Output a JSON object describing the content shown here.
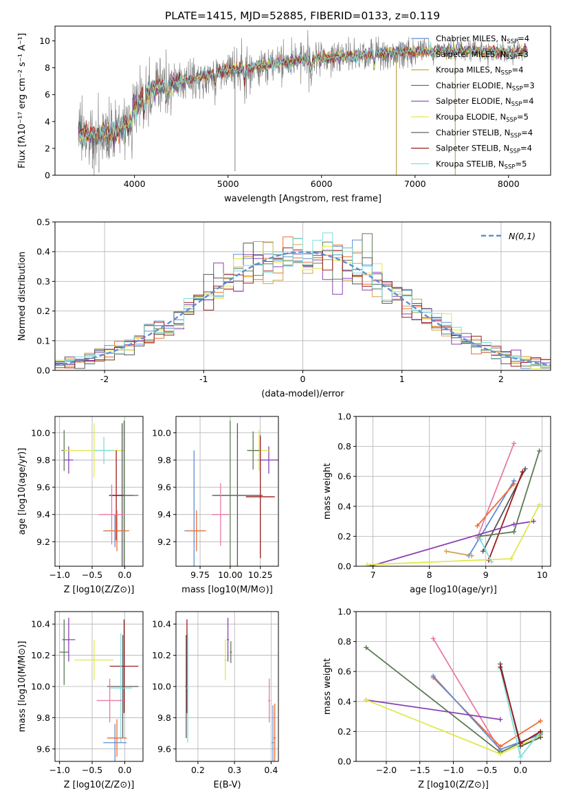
{
  "figure_title": "PLATE=1415, MJD=52885, FIBERID=0133, z=0.119",
  "colors": {
    "chabrier_miles": "#5e8bd4",
    "salpeter_miles": "#ef6b2e",
    "kroupa_miles": "#d4a14a",
    "chabrier_elodie": "#5a7a52",
    "salpeter_elodie": "#8a3fb0",
    "kroupa_elodie": "#e0e84a",
    "chabrier_stelib": "#555555",
    "salpeter_stelib": "#9b1a1a",
    "kroupa_stelib": "#7fdcdc",
    "pink": "#e87aa8",
    "normal": "#5b8ed6",
    "data": "#808080",
    "grid": "#b0b0b0"
  },
  "chart_data": [
    {
      "id": "spectrum",
      "type": "line",
      "title": "PLATE=1415, MJD=52885, FIBERID=0133, z=0.119",
      "xlabel": "wavelength [Angstrom, rest frame]",
      "ylabel": "Flux [fλ10⁻¹⁷ erg cm⁻² s⁻¹ A⁻¹]",
      "xlim": [
        3150,
        8450
      ],
      "ylim": [
        0,
        11.1
      ],
      "xticks": [
        4000,
        5000,
        6000,
        7000,
        8000
      ],
      "yticks": [
        0,
        2,
        4,
        6,
        8,
        10
      ],
      "grid": false,
      "legend_position": "top-right",
      "continuum_x": [
        3400,
        3600,
        3800,
        3950,
        4000,
        4200,
        4500,
        5000,
        5500,
        6000,
        6500,
        7000,
        7500,
        8000,
        8200
      ],
      "continuum_y": [
        3.1,
        3.0,
        3.2,
        4.2,
        5.2,
        6.4,
        7.0,
        7.8,
        8.3,
        8.7,
        9.0,
        9.2,
        9.3,
        9.2,
        9.2
      ],
      "series": [
        {
          "name": "Chabrier MILES, N_SSP=4",
          "label_main": "Chabrier MILES, N",
          "label_sub": "SSP",
          "label_tail": "=4",
          "color_key": "chabrier_miles"
        },
        {
          "name": "Salpeter MILES, N_SSP=3",
          "label_main": "Salpeter MILES, N",
          "label_sub": "SSP",
          "label_tail": "=3",
          "color_key": "salpeter_miles"
        },
        {
          "name": "Kroupa MILES, N_SSP=4",
          "label_main": "Kroupa MILES, N",
          "label_sub": "SSP",
          "label_tail": "=4",
          "color_key": "kroupa_miles"
        },
        {
          "name": "Chabrier ELODIE, N_SSP=3",
          "label_main": "Chabrier ELODIE, N",
          "label_sub": "SSP",
          "label_tail": "=3",
          "color_key": "chabrier_elodie"
        },
        {
          "name": "Salpeter ELODIE, N_SSP=4",
          "label_main": "Salpeter ELODIE, N",
          "label_sub": "SSP",
          "label_tail": "=4",
          "color_key": "salpeter_elodie"
        },
        {
          "name": "Kroupa ELODIE, N_SSP=5",
          "label_main": "Kroupa ELODIE, N",
          "label_sub": "SSP",
          "label_tail": "=5",
          "color_key": "kroupa_elodie"
        },
        {
          "name": "Chabrier STELIB, N_SSP=4",
          "label_main": "Chabrier STELIB, N",
          "label_sub": "SSP",
          "label_tail": "=4",
          "color_key": "chabrier_stelib"
        },
        {
          "name": "Salpeter STELIB, N_SSP=4",
          "label_main": "Salpeter STELIB, N",
          "label_sub": "SSP",
          "label_tail": "=4",
          "color_key": "salpeter_stelib"
        },
        {
          "name": "Kroupa STELIB, N_SSP=5",
          "label_main": "Kroupa STELIB, N",
          "label_sub": "SSP",
          "label_tail": "=5",
          "color_key": "kroupa_stelib"
        }
      ]
    },
    {
      "id": "residuals",
      "type": "histogram",
      "xlabel": "(data-model)/error",
      "ylabel": "Normed distribution",
      "xlim": [
        -2.5,
        2.5
      ],
      "ylim": [
        0,
        0.5
      ],
      "xticks": [
        -2,
        -1,
        0,
        1,
        2
      ],
      "yticks": [
        0.0,
        0.1,
        0.2,
        0.3,
        0.4,
        0.5
      ],
      "grid": true,
      "bin_width": 0.1,
      "reference_curve": {
        "name": "N(0,1)",
        "mu": 0,
        "sigma": 1
      },
      "legend_position": "top-right",
      "series_color_keys": [
        "chabrier_miles",
        "salpeter_miles",
        "kroupa_miles",
        "chabrier_elodie",
        "salpeter_elodie",
        "kroupa_elodie",
        "chabrier_stelib",
        "salpeter_stelib",
        "kroupa_stelib"
      ]
    },
    {
      "id": "age_vs_Z",
      "type": "errorbar",
      "xlabel": "Z [log10(Z/Z⊙)]",
      "ylabel": "age [log10(age/yr)]",
      "xlim": [
        -1.07,
        0.28
      ],
      "ylim": [
        9.02,
        10.12
      ],
      "xticks": [
        -1.0,
        -0.5,
        0.0
      ],
      "yticks": [
        9.2,
        9.4,
        9.6,
        9.8,
        10.0
      ],
      "grid": true,
      "points": [
        {
          "x": -0.93,
          "y": 9.87,
          "xerr": 0.04,
          "yerr": 0.15,
          "color_key": "chabrier_elodie"
        },
        {
          "x": -0.86,
          "y": 9.8,
          "xerr": 0.07,
          "yerr": 0.1,
          "color_key": "salpeter_elodie"
        },
        {
          "x": -0.47,
          "y": 9.87,
          "xerr": 0.47,
          "yerr": 0.2,
          "color_key": "kroupa_elodie"
        },
        {
          "x": -0.32,
          "y": 9.87,
          "xerr": 0.15,
          "yerr": 0.1,
          "color_key": "kroupa_stelib"
        },
        {
          "x": -0.04,
          "y": 9.54,
          "xerr": 0.17,
          "yerr": 0.53,
          "color_key": "chabrier_stelib"
        },
        {
          "x": -0.01,
          "y": 9.54,
          "xerr": 0.22,
          "yerr": 0.55,
          "color_key": "chabrier_elodie"
        },
        {
          "x": -0.13,
          "y": 9.54,
          "xerr": 0.11,
          "yerr": 0.33,
          "color_key": "salpeter_stelib"
        },
        {
          "x": -0.15,
          "y": 9.28,
          "xerr": 0.18,
          "yerr": 0.12,
          "color_key": "chabrier_miles"
        },
        {
          "x": -0.12,
          "y": 9.28,
          "xerr": 0.19,
          "yerr": 0.15,
          "color_key": "salpeter_miles"
        },
        {
          "x": -0.2,
          "y": 9.4,
          "xerr": 0.2,
          "yerr": 0.22,
          "color_key": "pink"
        }
      ]
    },
    {
      "id": "age_vs_mass",
      "type": "errorbar",
      "xlabel": "mass [log10(M/M⊙)]",
      "ylabel": "",
      "xlim": [
        9.55,
        10.4
      ],
      "ylim": [
        9.02,
        10.12
      ],
      "xticks": [
        9.75,
        10.0,
        10.25
      ],
      "xtick_labels": [
        "9.75",
        "10.00",
        "10.25"
      ],
      "yticks": [
        9.2,
        9.4,
        9.6,
        9.8,
        10.0
      ],
      "grid": true,
      "points": [
        {
          "x": 10.32,
          "y": 9.8,
          "xerr": 0.09,
          "yerr": 0.1,
          "color_key": "salpeter_elodie"
        },
        {
          "x": 10.24,
          "y": 9.87,
          "xerr": 0.09,
          "yerr": 0.15,
          "color_key": "kroupa_elodie"
        },
        {
          "x": 10.19,
          "y": 9.87,
          "xerr": 0.05,
          "yerr": 0.14,
          "color_key": "chabrier_elodie"
        },
        {
          "x": 10.25,
          "y": 9.53,
          "xerr": 0.12,
          "yerr": 0.45,
          "color_key": "salpeter_stelib"
        },
        {
          "x": 10.06,
          "y": 9.54,
          "xerr": 0.21,
          "yerr": 0.53,
          "color_key": "chabrier_stelib"
        },
        {
          "x": 10.0,
          "y": 9.54,
          "xerr": 0.11,
          "yerr": 0.55,
          "color_key": "chabrier_elodie"
        },
        {
          "x": 9.7,
          "y": 9.28,
          "xerr": 0.08,
          "yerr": 0.59,
          "color_key": "chabrier_miles"
        },
        {
          "x": 9.72,
          "y": 9.28,
          "xerr": 0.08,
          "yerr": 0.15,
          "color_key": "salpeter_miles"
        },
        {
          "x": 9.92,
          "y": 9.4,
          "xerr": 0.07,
          "yerr": 0.23,
          "color_key": "pink"
        }
      ]
    },
    {
      "id": "weight_vs_age",
      "type": "line",
      "xlabel": "age [log10(age/yr)]",
      "ylabel": "mass weight",
      "xlim": [
        6.7,
        10.15
      ],
      "ylim": [
        0,
        1.0
      ],
      "xticks": [
        7,
        8,
        9,
        10
      ],
      "yticks": [
        0.0,
        0.2,
        0.4,
        0.6,
        0.8,
        1.0
      ],
      "grid": true,
      "series": [
        {
          "color_key": "pink",
          "x": [
            8.85,
            9.5
          ],
          "y": [
            0.19,
            0.82
          ]
        },
        {
          "color_key": "chabrier_miles",
          "x": [
            8.7,
            9.5
          ],
          "y": [
            0.07,
            0.57
          ]
        },
        {
          "color_key": "salpeter_miles",
          "x": [
            8.85,
            9.5
          ],
          "y": [
            0.27,
            0.55
          ]
        },
        {
          "color_key": "chabrier_stelib",
          "x": [
            8.95,
            9.7
          ],
          "y": [
            0.1,
            0.65
          ]
        },
        {
          "color_key": "salpeter_stelib",
          "x": [
            9.05,
            9.65
          ],
          "y": [
            0.04,
            0.63
          ]
        },
        {
          "color_key": "chabrier_elodie",
          "x": [
            8.9,
            9.5,
            9.95
          ],
          "y": [
            0.2,
            0.23,
            0.77
          ]
        },
        {
          "color_key": "salpeter_elodie",
          "x": [
            6.95,
            9.5,
            9.85
          ],
          "y": [
            0.0,
            0.28,
            0.3
          ]
        },
        {
          "color_key": "kroupa_elodie",
          "x": [
            6.9,
            9.45,
            9.95
          ],
          "y": [
            0.01,
            0.05,
            0.41
          ]
        },
        {
          "color_key": "kroupa_stelib",
          "x": [
            8.9,
            9.1
          ],
          "y": [
            0.18,
            0.03
          ]
        },
        {
          "color_key": "kroupa_miles",
          "x": [
            8.3,
            8.75
          ],
          "y": [
            0.1,
            0.07
          ]
        }
      ]
    },
    {
      "id": "mass_vs_Z",
      "type": "errorbar",
      "xlabel": "Z [log10(Z/Z⊙)]",
      "ylabel": "mass [log10(M/M⊙)]",
      "xlim": [
        -1.07,
        0.28
      ],
      "ylim": [
        9.52,
        10.48
      ],
      "xticks": [
        -1.0,
        -0.5,
        0.0
      ],
      "yticks": [
        9.6,
        9.8,
        10.0,
        10.2,
        10.4
      ],
      "grid": true,
      "points": [
        {
          "x": -0.93,
          "y": 10.22,
          "xerr": 0.07,
          "yerr": 0.21,
          "color_key": "chabrier_elodie"
        },
        {
          "x": -0.86,
          "y": 10.3,
          "xerr": 0.1,
          "yerr": 0.14,
          "color_key": "salpeter_elodie"
        },
        {
          "x": -0.47,
          "y": 10.17,
          "xerr": 0.3,
          "yerr": 0.13,
          "color_key": "kroupa_elodie"
        },
        {
          "x": -0.01,
          "y": 10.13,
          "xerr": 0.22,
          "yerr": 0.3,
          "color_key": "salpeter_stelib"
        },
        {
          "x": -0.03,
          "y": 10.0,
          "xerr": 0.24,
          "yerr": 0.33,
          "color_key": "chabrier_stelib"
        },
        {
          "x": -0.06,
          "y": 9.99,
          "xerr": 0.17,
          "yerr": 0.35,
          "color_key": "kroupa_stelib"
        },
        {
          "x": -0.15,
          "y": 9.64,
          "xerr": 0.18,
          "yerr": 0.12,
          "color_key": "chabrier_miles"
        },
        {
          "x": -0.12,
          "y": 9.67,
          "xerr": 0.15,
          "yerr": 0.12,
          "color_key": "salpeter_miles"
        },
        {
          "x": -0.23,
          "y": 9.91,
          "xerr": 0.2,
          "yerr": 0.14,
          "color_key": "pink"
        }
      ]
    },
    {
      "id": "mass_vs_EBV",
      "type": "errorbar",
      "xlabel": "E(B-V)",
      "ylabel": "",
      "xlim": [
        0.14,
        0.42
      ],
      "ylim": [
        9.52,
        10.48
      ],
      "xticks": [
        0.2,
        0.3,
        0.4
      ],
      "yticks": [
        9.6,
        9.8,
        10.0,
        10.2,
        10.4
      ],
      "grid": true,
      "points": [
        {
          "x": 0.17,
          "y": 10.13,
          "xerr": 0.003,
          "yerr": 0.3,
          "color_key": "salpeter_stelib"
        },
        {
          "x": 0.168,
          "y": 10.0,
          "xerr": 0.003,
          "yerr": 0.33,
          "color_key": "chabrier_stelib"
        },
        {
          "x": 0.172,
          "y": 9.99,
          "xerr": 0.003,
          "yerr": 0.35,
          "color_key": "kroupa_stelib"
        },
        {
          "x": 0.282,
          "y": 10.3,
          "xerr": 0.003,
          "yerr": 0.14,
          "color_key": "salpeter_elodie"
        },
        {
          "x": 0.29,
          "y": 10.22,
          "xerr": 0.003,
          "yerr": 0.07,
          "color_key": "chabrier_elodie"
        },
        {
          "x": 0.275,
          "y": 10.17,
          "xerr": 0.003,
          "yerr": 0.13,
          "color_key": "kroupa_elodie"
        },
        {
          "x": 0.395,
          "y": 9.91,
          "xerr": 0.003,
          "yerr": 0.14,
          "color_key": "pink"
        },
        {
          "x": 0.405,
          "y": 9.64,
          "xerr": 0.003,
          "yerr": 0.24,
          "color_key": "chabrier_miles"
        },
        {
          "x": 0.41,
          "y": 9.67,
          "xerr": 0.003,
          "yerr": 0.22,
          "color_key": "salpeter_miles"
        }
      ]
    },
    {
      "id": "weight_vs_Z",
      "type": "line",
      "xlabel": "Z [log10(Z/Z⊙)]",
      "ylabel": "mass weight",
      "xlim": [
        -2.45,
        0.45
      ],
      "ylim": [
        0,
        1.0
      ],
      "xticks": [
        -2.0,
        -1.5,
        -1.0,
        -0.5,
        0.0
      ],
      "yticks": [
        0.0,
        0.2,
        0.4,
        0.6,
        0.8,
        1.0
      ],
      "grid": true,
      "series": [
        {
          "color_key": "pink",
          "x": [
            -1.3,
            -0.3
          ],
          "y": [
            0.82,
            0.07
          ]
        },
        {
          "color_key": "chabrier_elodie",
          "x": [
            -2.3,
            -0.3,
            0.3
          ],
          "y": [
            0.76,
            0.06,
            0.19
          ]
        },
        {
          "color_key": "salpeter_miles",
          "x": [
            -1.3,
            -0.3,
            0.3
          ],
          "y": [
            0.56,
            0.1,
            0.27
          ]
        },
        {
          "color_key": "chabrier_miles",
          "x": [
            -1.3,
            -0.3,
            0.3
          ],
          "y": [
            0.57,
            0.08,
            0.18
          ]
        },
        {
          "color_key": "salpeter_elodie",
          "x": [
            -2.3,
            -0.3
          ],
          "y": [
            0.41,
            0.28
          ]
        },
        {
          "color_key": "kroupa_elodie",
          "x": [
            -2.3,
            -0.3,
            0.3
          ],
          "y": [
            0.41,
            0.05,
            0.17
          ]
        },
        {
          "color_key": "chabrier_stelib",
          "x": [
            -0.3,
            0.0,
            0.3
          ],
          "y": [
            0.65,
            0.1,
            0.16
          ]
        },
        {
          "color_key": "kroupa_stelib",
          "x": [
            -0.3,
            0.0,
            0.3
          ],
          "y": [
            0.62,
            0.03,
            0.2
          ]
        },
        {
          "color_key": "salpeter_stelib",
          "x": [
            -0.3,
            0.0,
            0.3
          ],
          "y": [
            0.63,
            0.12,
            0.2
          ]
        }
      ]
    }
  ]
}
